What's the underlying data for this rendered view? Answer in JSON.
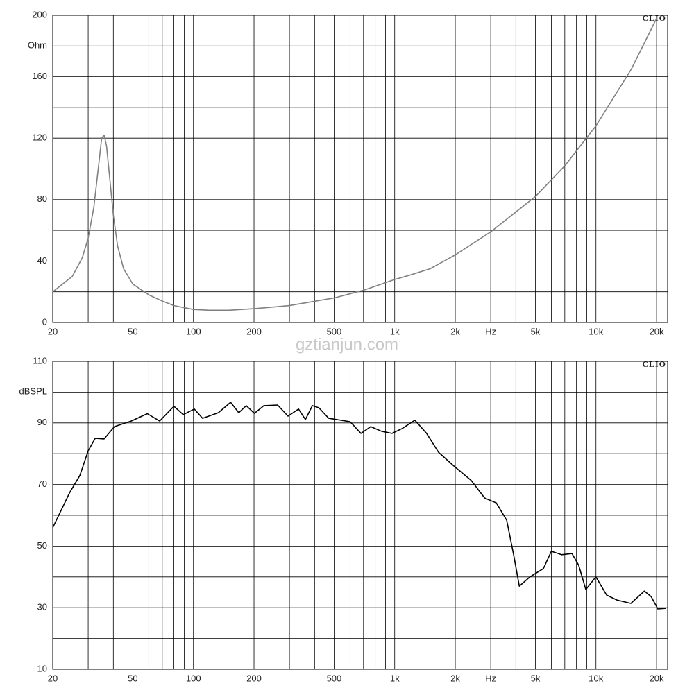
{
  "watermark": "gztianjun.com",
  "chart_data": [
    {
      "type": "line",
      "ylabel": "Ohm",
      "badge": "CLIO",
      "log_x": true,
      "color": "#808080",
      "xlim": [
        20,
        22700
      ],
      "ylim": [
        0,
        200
      ],
      "yticks": [
        0,
        40,
        80,
        120,
        160,
        200
      ],
      "ygrid": [
        20,
        40,
        60,
        80,
        100,
        120,
        140,
        160,
        180
      ],
      "xticks": [
        20,
        50,
        100,
        200,
        500,
        {
          "value": 1000,
          "label": "1k"
        },
        {
          "value": 2000,
          "label": "2k"
        },
        {
          "value": 3000,
          "label": "Hz"
        },
        {
          "value": 5000,
          "label": "5k"
        },
        {
          "value": 10000,
          "label": "10k"
        },
        {
          "value": 20000,
          "label": "20k"
        }
      ],
      "xgrid": [
        30,
        40,
        50,
        60,
        70,
        80,
        90,
        100,
        200,
        300,
        400,
        500,
        600,
        700,
        800,
        900,
        1000,
        2000,
        3000,
        4000,
        5000,
        6000,
        7000,
        8000,
        9000,
        10000,
        20000
      ],
      "x": [
        20,
        25,
        28,
        30,
        32,
        34,
        35,
        36,
        37,
        38,
        40,
        42,
        45,
        50,
        60,
        70,
        80,
        100,
        120,
        150,
        200,
        300,
        500,
        700,
        1000,
        1200,
        1500,
        2000,
        3000,
        5000,
        7000,
        10000,
        15000,
        20000
      ],
      "values": [
        20,
        30,
        42,
        55,
        75,
        105,
        120,
        122,
        115,
        100,
        70,
        50,
        35,
        25,
        18,
        14,
        11,
        8.5,
        8,
        8,
        9,
        11,
        16,
        21,
        28,
        31,
        35,
        44,
        59,
        82,
        102,
        128,
        165,
        198
      ]
    },
    {
      "type": "line",
      "ylabel": "dBSPL",
      "badge": "CLIO",
      "log_x": true,
      "color": "#000000",
      "xlim": [
        20,
        22700
      ],
      "ylim": [
        10,
        110
      ],
      "yticks": [
        10,
        30,
        50,
        70,
        90,
        110
      ],
      "ygrid": [
        20,
        30,
        40,
        50,
        60,
        70,
        80,
        90,
        100
      ],
      "xticks": [
        20,
        50,
        100,
        200,
        500,
        {
          "value": 1000,
          "label": "1k"
        },
        {
          "value": 2000,
          "label": "2k"
        },
        {
          "value": 3000,
          "label": "Hz"
        },
        {
          "value": 5000,
          "label": "5k"
        },
        {
          "value": 10000,
          "label": "10k"
        },
        {
          "value": 20000,
          "label": "20k"
        }
      ],
      "xgrid": [
        30,
        40,
        50,
        60,
        70,
        80,
        90,
        100,
        200,
        300,
        400,
        500,
        600,
        700,
        800,
        900,
        1000,
        2000,
        3000,
        4000,
        5000,
        6000,
        7000,
        8000,
        9000,
        10000,
        20000
      ],
      "x": [
        20,
        24.3,
        27.3,
        30,
        32.5,
        36,
        40.5,
        49,
        59,
        68,
        80,
        89,
        101,
        111,
        133,
        153,
        168,
        183,
        201,
        224,
        262,
        295,
        333,
        360,
        390,
        420,
        470,
        600,
        680,
        760,
        860,
        970,
        1090,
        1260,
        1440,
        1650,
        1970,
        2400,
        2800,
        3200,
        3600,
        3900,
        4160,
        4700,
        5480,
        6000,
        6750,
        7600,
        8200,
        8900,
        10000,
        11300,
        12700,
        14900,
        17400,
        18800,
        20300,
        22300
      ],
      "values": [
        56,
        67.4,
        73,
        81,
        85,
        84.8,
        88.8,
        90.6,
        93,
        90.6,
        95.4,
        92.7,
        94.5,
        91.5,
        93.3,
        96.7,
        93.3,
        95.6,
        93.1,
        95.6,
        95.8,
        92.2,
        94.5,
        91.1,
        95.6,
        94.9,
        91.5,
        90.4,
        86.6,
        88.8,
        87.3,
        86.6,
        88.2,
        90.9,
        86.6,
        80.5,
        76,
        71.3,
        65.6,
        64,
        58.4,
        47.2,
        37,
        40,
        42.7,
        48.3,
        47.2,
        47.6,
        43.8,
        35.9,
        40,
        34.1,
        32.5,
        31.4,
        35.4,
        33.6,
        29.6,
        29.8
      ]
    }
  ]
}
